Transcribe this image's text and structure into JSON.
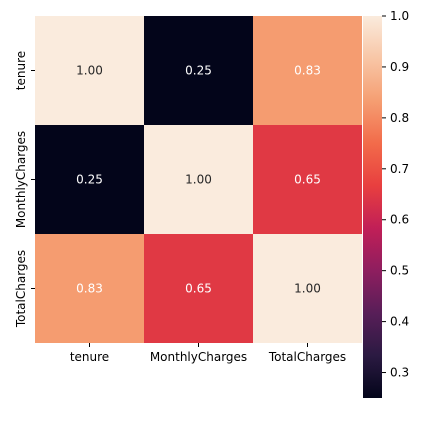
{
  "chart_data": {
    "type": "heatmap",
    "title": "",
    "xlabel": "",
    "ylabel": "",
    "x_categories": [
      "tenure",
      "MonthlyCharges",
      "TotalCharges"
    ],
    "y_categories": [
      "tenure",
      "MonthlyCharges",
      "TotalCharges"
    ],
    "values": [
      [
        1.0,
        0.25,
        0.83
      ],
      [
        0.25,
        1.0,
        0.65
      ],
      [
        0.83,
        0.65,
        1.0
      ]
    ],
    "annotations": [
      [
        "1.00",
        "0.25",
        "0.83"
      ],
      [
        "0.25",
        "1.00",
        "0.65"
      ],
      [
        "0.83",
        "0.65",
        "1.00"
      ]
    ],
    "colorbar": {
      "vmin": 0.25,
      "vmax": 1.0,
      "ticks": [
        0.3,
        0.4,
        0.5,
        0.6,
        0.7,
        0.8,
        0.9,
        1.0
      ],
      "tick_labels": [
        "0.3",
        "0.4",
        "0.5",
        "0.6",
        "0.7",
        "0.8",
        "0.9",
        "1.0"
      ]
    },
    "colormap": "rocket",
    "colormap_stops": [
      "#03051a",
      "#2b1a42",
      "#581e58",
      "#8e1e5f",
      "#c11f57",
      "#e83f3f",
      "#f26b4a",
      "#f59e72",
      "#f8c6a6",
      "#faebdd"
    ],
    "annotation_colors": {
      "on_light": "#262626",
      "on_dark": "#ffffff"
    },
    "grid": false
  }
}
